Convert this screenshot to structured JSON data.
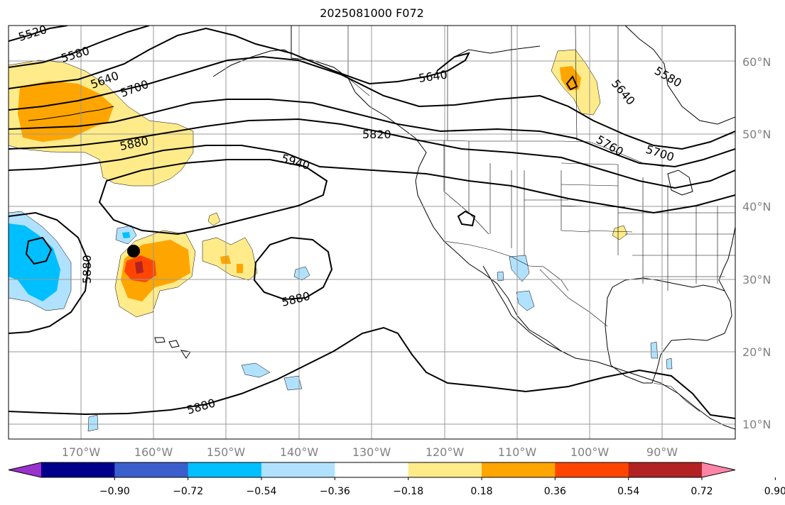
{
  "title": "2025081000 F072",
  "lat_labels": [
    "60°N",
    "50°N",
    "40°N",
    "30°N",
    "20°N",
    "10°N"
  ],
  "lon_labels": [
    "170°W",
    "160°W",
    "150°W",
    "140°W",
    "130°W",
    "120°W",
    "110°W",
    "100°W",
    "90°W"
  ],
  "contour_labels": [
    "5520",
    "5580",
    "5640",
    "5700",
    "5880",
    "5940",
    "5820",
    "5640",
    "5580",
    "5640",
    "5760",
    "5700",
    "5880",
    "5880",
    "5880"
  ],
  "colorbar": {
    "ticks": [
      "−0.90",
      "−0.72",
      "−0.54",
      "−0.36",
      "−0.18",
      "0.18",
      "0.36",
      "0.54",
      "0.72",
      "0.90"
    ],
    "colors": [
      "#9932cc",
      "#00008b",
      "#3a5fcd",
      "#00bfff",
      "#b0e2ff",
      "#ffffff",
      "#ffeb8a",
      "#ffa500",
      "#ff4500",
      "#b22222",
      "#ff85a8"
    ]
  },
  "marker": "Black dot marker near 34°N, 163°W"
}
